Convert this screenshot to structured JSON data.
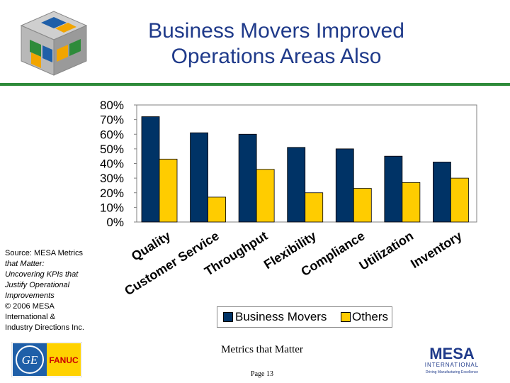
{
  "title_line1": "Business Movers Improved",
  "title_line2": "Operations Areas Also",
  "source": {
    "line1": "Source: MESA Metrics",
    "line2": "that Matter:",
    "line3": "Uncovering KPIs that",
    "line4": "Justify Operational",
    "line5": "Improvements",
    "line6": "© 2006 MESA",
    "line7": "International &",
    "line8": "Industry Directions Inc."
  },
  "footer": {
    "text": "Metrics that Matter",
    "page": "Page 13",
    "ge_monogram": "GE",
    "fanuc": "FANUC",
    "mesa": "MESA",
    "mesa_sub": "INTERNATIONAL",
    "mesa_tagline": "Driving Manufacturing Excellence"
  },
  "colors": {
    "business_movers": "#003366",
    "others": "#ffcc00",
    "plot_bg": "#ffffff",
    "rule": "#2e8b3a",
    "title": "#1f3a8a"
  },
  "chart_data": {
    "type": "bar",
    "categories": [
      "Quality",
      "Customer Service",
      "Throughput",
      "Flexibility",
      "Compliance",
      "Utilization",
      "Inventory"
    ],
    "series": [
      {
        "name": "Business Movers",
        "values": [
          72,
          61,
          60,
          51,
          50,
          45,
          41
        ]
      },
      {
        "name": "Others",
        "values": [
          43,
          17,
          36,
          20,
          23,
          27,
          30
        ]
      }
    ],
    "ylim": [
      0,
      80
    ],
    "yticks": [
      "0%",
      "10%",
      "20%",
      "30%",
      "40%",
      "50%",
      "60%",
      "70%",
      "80%"
    ],
    "legend_position": "bottom",
    "grid": false
  }
}
